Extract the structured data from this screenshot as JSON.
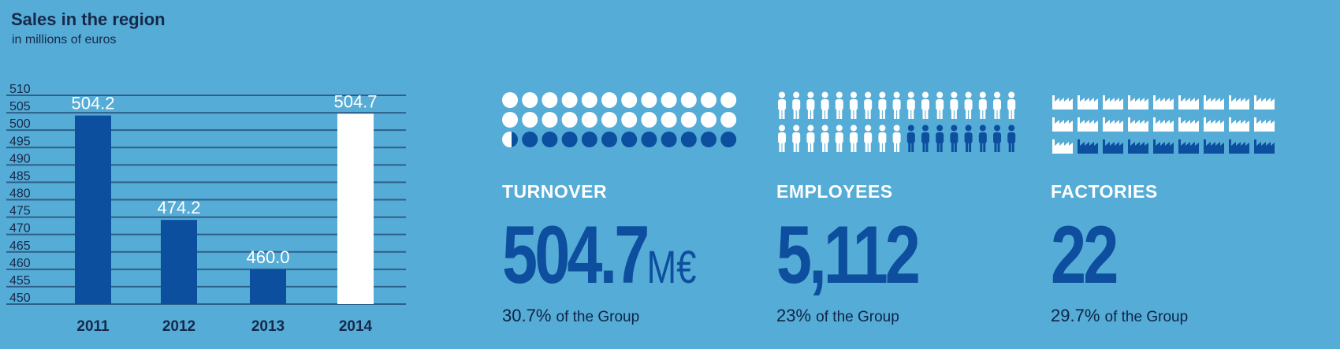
{
  "colors": {
    "background": "#55acd6",
    "bar": "#0b4f9e",
    "highlight": "#ffffff",
    "dark_text": "#17284a",
    "kpi_value": "#0d4f9e"
  },
  "chart_data": {
    "type": "bar",
    "title": "Sales in the region",
    "subtitle": "in millions of euros",
    "categories": [
      "2011",
      "2012",
      "2013",
      "2014"
    ],
    "values": [
      504.2,
      474.2,
      460.0,
      504.7
    ],
    "value_labels": [
      "504.2",
      "474.2",
      "460.0",
      "504.7"
    ],
    "highlight_index": 3,
    "ylim": [
      450,
      510
    ],
    "yticks": [
      450,
      455,
      460,
      465,
      470,
      475,
      480,
      485,
      490,
      495,
      500,
      505,
      510
    ],
    "grid": true
  },
  "kpis": [
    {
      "label": "TURNOVER",
      "value": "504.7",
      "unit": "M€",
      "share_value": "30.7%",
      "share_text": "of the Group",
      "icon": "circle-icon",
      "icon_total": 36,
      "icon_filled_fraction": 0.307,
      "icon_cols": 12
    },
    {
      "label": "EMPLOYEES",
      "value": "5,112",
      "unit": "",
      "share_value": "23%",
      "share_text": "of the Group",
      "icon": "person-icon",
      "icon_total": 34,
      "icon_filled_fraction": 0.23,
      "icon_cols": 17
    },
    {
      "label": "FACTORIES",
      "value": "22",
      "unit": "",
      "share_value": "29.7%",
      "share_text": "of the Group",
      "icon": "factory-icon",
      "icon_total": 27,
      "icon_filled_fraction": 0.297,
      "icon_cols": 9
    }
  ]
}
